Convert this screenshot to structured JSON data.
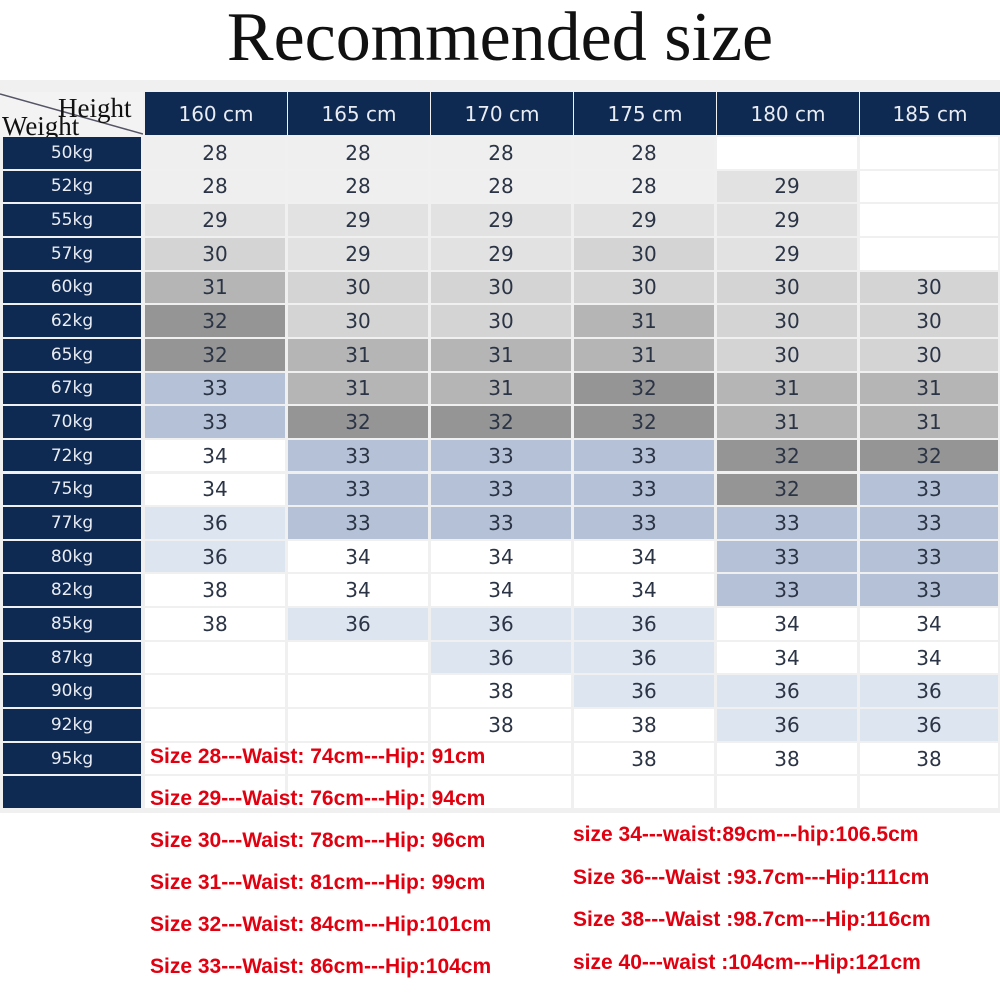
{
  "title": "Recommended size",
  "corner": {
    "height_label": "Height",
    "weight_label": "Weight"
  },
  "heights": [
    "160 cm",
    "165 cm",
    "170 cm",
    "175 cm",
    "180 cm",
    "185 cm"
  ],
  "colors": {
    "header": "#0f2a52",
    "w": "#ffffff",
    "l": "#efefef",
    "l2": "#e2e2e2",
    "g1": "#d4d4d4",
    "g2": "#b5b5b5",
    "g3": "#959595",
    "b1": "#b4c1d6",
    "b2": "#dde5f0",
    "note_text": "#e0000f"
  },
  "rows": [
    {
      "weight": "50kg",
      "cells": [
        [
          "28",
          "l"
        ],
        [
          "28",
          "l"
        ],
        [
          "28",
          "l"
        ],
        [
          "28",
          "l"
        ],
        [
          "",
          "w"
        ],
        [
          "",
          "w"
        ]
      ]
    },
    {
      "weight": "52kg",
      "cells": [
        [
          "28",
          "l"
        ],
        [
          "28",
          "l"
        ],
        [
          "28",
          "l"
        ],
        [
          "28",
          "l"
        ],
        [
          "29",
          "l2"
        ],
        [
          "",
          "w"
        ]
      ]
    },
    {
      "weight": "55kg",
      "cells": [
        [
          "29",
          "l2"
        ],
        [
          "29",
          "l2"
        ],
        [
          "29",
          "l2"
        ],
        [
          "29",
          "l2"
        ],
        [
          "29",
          "l2"
        ],
        [
          "",
          "w"
        ]
      ]
    },
    {
      "weight": "57kg",
      "cells": [
        [
          "30",
          "g1"
        ],
        [
          "29",
          "l2"
        ],
        [
          "29",
          "l2"
        ],
        [
          "30",
          "g1"
        ],
        [
          "29",
          "l2"
        ],
        [
          "",
          "w"
        ]
      ]
    },
    {
      "weight": "60kg",
      "cells": [
        [
          "31",
          "g2"
        ],
        [
          "30",
          "g1"
        ],
        [
          "30",
          "g1"
        ],
        [
          "30",
          "g1"
        ],
        [
          "30",
          "g1"
        ],
        [
          "30",
          "g1"
        ]
      ]
    },
    {
      "weight": "62kg",
      "cells": [
        [
          "32",
          "g3"
        ],
        [
          "30",
          "g1"
        ],
        [
          "30",
          "g1"
        ],
        [
          "31",
          "g2"
        ],
        [
          "30",
          "g1"
        ],
        [
          "30",
          "g1"
        ]
      ]
    },
    {
      "weight": "65kg",
      "cells": [
        [
          "32",
          "g3"
        ],
        [
          "31",
          "g2"
        ],
        [
          "31",
          "g2"
        ],
        [
          "31",
          "g2"
        ],
        [
          "30",
          "g1"
        ],
        [
          "30",
          "g1"
        ]
      ]
    },
    {
      "weight": "67kg",
      "cells": [
        [
          "33",
          "b1"
        ],
        [
          "31",
          "g2"
        ],
        [
          "31",
          "g2"
        ],
        [
          "32",
          "g3"
        ],
        [
          "31",
          "g2"
        ],
        [
          "31",
          "g2"
        ]
      ]
    },
    {
      "weight": "70kg",
      "cells": [
        [
          "33",
          "b1"
        ],
        [
          "32",
          "g3"
        ],
        [
          "32",
          "g3"
        ],
        [
          "32",
          "g3"
        ],
        [
          "31",
          "g2"
        ],
        [
          "31",
          "g2"
        ]
      ]
    },
    {
      "weight": "72kg",
      "cells": [
        [
          "34",
          "w"
        ],
        [
          "33",
          "b1"
        ],
        [
          "33",
          "b1"
        ],
        [
          "33",
          "b1"
        ],
        [
          "32",
          "g3"
        ],
        [
          "32",
          "g3"
        ]
      ]
    },
    {
      "weight": "75kg",
      "cells": [
        [
          "34",
          "w"
        ],
        [
          "33",
          "b1"
        ],
        [
          "33",
          "b1"
        ],
        [
          "33",
          "b1"
        ],
        [
          "32",
          "g3"
        ],
        [
          "33",
          "b1"
        ]
      ]
    },
    {
      "weight": "77kg",
      "cells": [
        [
          "36",
          "b2"
        ],
        [
          "33",
          "b1"
        ],
        [
          "33",
          "b1"
        ],
        [
          "33",
          "b1"
        ],
        [
          "33",
          "b1"
        ],
        [
          "33",
          "b1"
        ]
      ]
    },
    {
      "weight": "80kg",
      "cells": [
        [
          "36",
          "b2"
        ],
        [
          "34",
          "w"
        ],
        [
          "34",
          "w"
        ],
        [
          "34",
          "w"
        ],
        [
          "33",
          "b1"
        ],
        [
          "33",
          "b1"
        ]
      ]
    },
    {
      "weight": "82kg",
      "cells": [
        [
          "38",
          "w"
        ],
        [
          "34",
          "w"
        ],
        [
          "34",
          "w"
        ],
        [
          "34",
          "w"
        ],
        [
          "33",
          "b1"
        ],
        [
          "33",
          "b1"
        ]
      ]
    },
    {
      "weight": "85kg",
      "cells": [
        [
          "38",
          "w"
        ],
        [
          "36",
          "b2"
        ],
        [
          "36",
          "b2"
        ],
        [
          "36",
          "b2"
        ],
        [
          "34",
          "w"
        ],
        [
          "34",
          "w"
        ]
      ]
    },
    {
      "weight": "87kg",
      "cells": [
        [
          "",
          "w"
        ],
        [
          "",
          "w"
        ],
        [
          "36",
          "b2"
        ],
        [
          "36",
          "b2"
        ],
        [
          "34",
          "w"
        ],
        [
          "34",
          "w"
        ]
      ]
    },
    {
      "weight": "90kg",
      "cells": [
        [
          "",
          "w"
        ],
        [
          "",
          "w"
        ],
        [
          "38",
          "w"
        ],
        [
          "36",
          "b2"
        ],
        [
          "36",
          "b2"
        ],
        [
          "36",
          "b2"
        ]
      ]
    },
    {
      "weight": "92kg",
      "cells": [
        [
          "",
          "w"
        ],
        [
          "",
          "w"
        ],
        [
          "38",
          "w"
        ],
        [
          "38",
          "w"
        ],
        [
          "36",
          "b2"
        ],
        [
          "36",
          "b2"
        ]
      ]
    },
    {
      "weight": "95kg",
      "cells": [
        [
          "",
          "w"
        ],
        [
          "",
          "w"
        ],
        [
          "",
          "w"
        ],
        [
          "38",
          "w"
        ],
        [
          "38",
          "w"
        ],
        [
          "38",
          "w"
        ]
      ]
    },
    {
      "weight": "",
      "cells": [
        [
          "",
          "w"
        ],
        [
          "",
          "w"
        ],
        [
          "",
          "w"
        ],
        [
          "",
          "w"
        ],
        [
          "",
          "w"
        ],
        [
          "",
          "w"
        ]
      ]
    }
  ],
  "notes_left": [
    "Size 28---Waist: 74cm---Hip: 91cm",
    "Size 29---Waist: 76cm---Hip: 94cm",
    "Size 30---Waist: 78cm---Hip: 96cm",
    "Size 31---Waist: 81cm---Hip: 99cm",
    "Size 32---Waist: 84cm---Hip:101cm",
    "Size 33---Waist: 86cm---Hip:104cm"
  ],
  "notes_right": [
    "size 34---waist:89cm---hip:106.5cm",
    "Size 36---Waist :93.7cm---Hip:111cm",
    "Size 38---Waist :98.7cm---Hip:116cm",
    "size 40---waist :104cm---Hip:121cm"
  ]
}
